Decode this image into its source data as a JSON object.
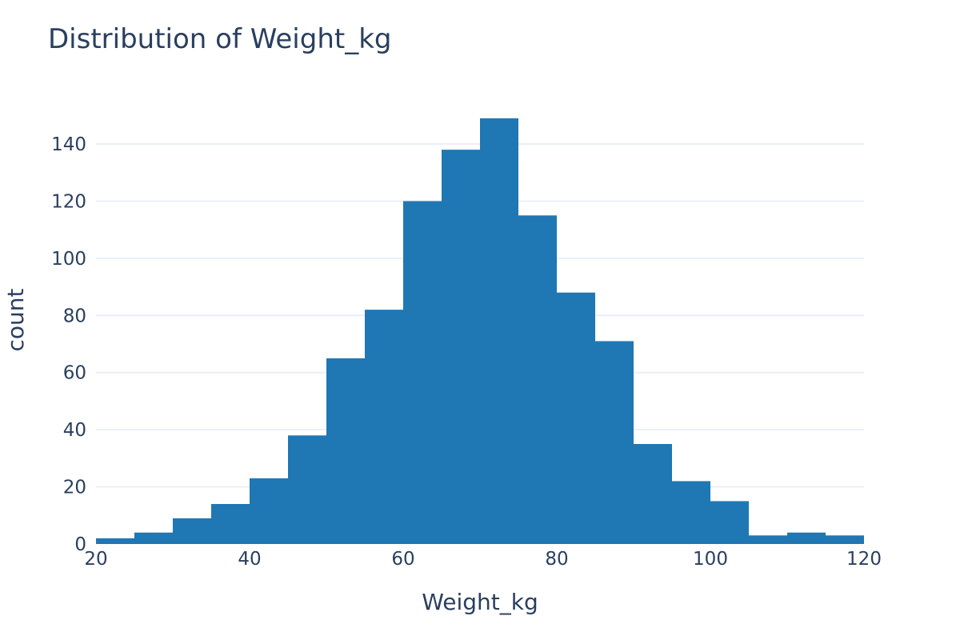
{
  "chart_data": {
    "type": "bar",
    "title": "Distribution of Weight_kg",
    "xlabel": "Weight_kg",
    "ylabel": "count",
    "xlim": [
      20,
      120
    ],
    "ylim": [
      0,
      155
    ],
    "x_ticks": [
      20,
      40,
      60,
      80,
      100,
      120
    ],
    "y_ticks": [
      0,
      20,
      40,
      60,
      80,
      100,
      120,
      140
    ],
    "grid": true,
    "bar_color": "#1f77b4",
    "bins": [
      {
        "start": 20,
        "end": 25,
        "count": 2
      },
      {
        "start": 25,
        "end": 30,
        "count": 4
      },
      {
        "start": 30,
        "end": 35,
        "count": 9
      },
      {
        "start": 35,
        "end": 40,
        "count": 14
      },
      {
        "start": 40,
        "end": 45,
        "count": 23
      },
      {
        "start": 45,
        "end": 50,
        "count": 38
      },
      {
        "start": 50,
        "end": 55,
        "count": 65
      },
      {
        "start": 55,
        "end": 60,
        "count": 82
      },
      {
        "start": 60,
        "end": 65,
        "count": 120
      },
      {
        "start": 65,
        "end": 70,
        "count": 138
      },
      {
        "start": 70,
        "end": 75,
        "count": 149
      },
      {
        "start": 75,
        "end": 80,
        "count": 115
      },
      {
        "start": 80,
        "end": 85,
        "count": 88
      },
      {
        "start": 85,
        "end": 90,
        "count": 71
      },
      {
        "start": 90,
        "end": 95,
        "count": 35
      },
      {
        "start": 95,
        "end": 100,
        "count": 22
      },
      {
        "start": 100,
        "end": 105,
        "count": 15
      },
      {
        "start": 105,
        "end": 110,
        "count": 3
      },
      {
        "start": 110,
        "end": 115,
        "count": 4
      },
      {
        "start": 115,
        "end": 120,
        "count": 3
      }
    ]
  }
}
